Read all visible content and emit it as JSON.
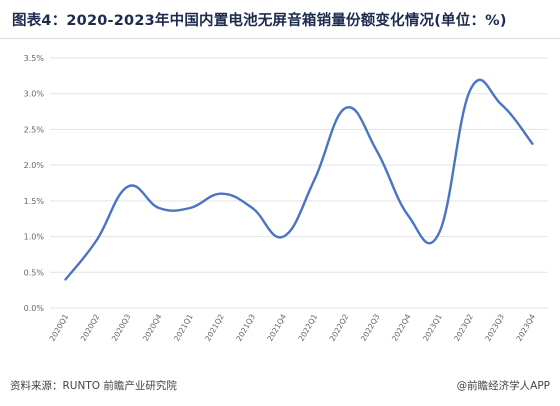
{
  "header": {
    "title": "图表4：2020-2023年中国内置电池无屏音箱销量份额变化情况(单位：%)"
  },
  "footer": {
    "source": "资料来源：RUNTO 前瞻产业研究院",
    "brand": "@前瞻经济学人APP"
  },
  "colors": {
    "line": "#4a74c4",
    "grid": "#e3e3e3"
  },
  "chart_data": {
    "type": "line",
    "title": "图表4：2020-2023年中国内置电池无屏音箱销量份额变化情况(单位：%)",
    "xlabel": "",
    "ylabel": "",
    "categories": [
      "2020Q1",
      "2020Q2",
      "2020Q3",
      "2020Q4",
      "2021Q1",
      "2021Q2",
      "2021Q3",
      "2021Q4",
      "2022Q1",
      "2022Q2",
      "2022Q3",
      "2022Q4",
      "2023Q1",
      "2023Q2",
      "2023Q3",
      "2023Q4"
    ],
    "series": [
      {
        "values": [
          0.4,
          0.95,
          1.7,
          1.4,
          1.4,
          1.6,
          1.4,
          1.0,
          1.8,
          2.8,
          2.2,
          1.3,
          1.05,
          3.05,
          2.85,
          2.3
        ]
      }
    ],
    "ylim": [
      0,
      3.5
    ],
    "yticks": [
      "0.0%",
      "0.5%",
      "1.0%",
      "1.5%",
      "2.0%",
      "2.5%",
      "3.0%",
      "3.5%"
    ],
    "grid": true,
    "legend": "none",
    "smooth": true
  }
}
